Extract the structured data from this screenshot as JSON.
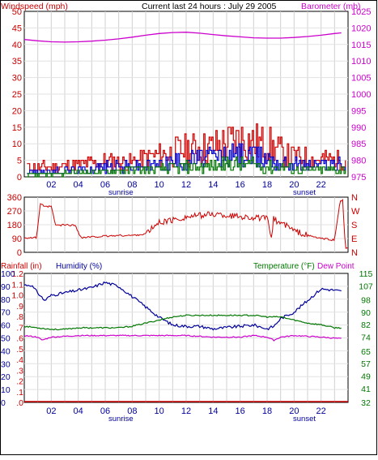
{
  "header": {
    "title": "Current last 24 hours : July 29 2005",
    "left_label": "Windspeed (mph)",
    "right_label": "Barometer (mb)"
  },
  "panel2": {
    "right_labels": [
      "N",
      "W",
      "S",
      "E",
      "N"
    ]
  },
  "panel3": {
    "rainfall_label": "Rainfall (in)",
    "humidity_label": "Humidity (%)",
    "temperature_label": "Temperature (°F)",
    "dewpoint_label": "Dew Point"
  },
  "x_ticks": [
    "02",
    "04",
    "06",
    "08",
    "10",
    "12",
    "14",
    "16",
    "18",
    "20",
    "22"
  ],
  "sunrise_label": "sunrise",
  "sunset_label": "sunset",
  "colors": {
    "windspeed": "#cc0000",
    "wind_blue": "#0000cc",
    "wind_green": "#007700",
    "barometer": "#cc00cc",
    "direction": "#cc0000",
    "humidity": "#000099",
    "temperature": "#007700",
    "dewpoint": "#cc00cc",
    "rainfall": "#cc0000",
    "grid": "#d0d0d0"
  },
  "chart_data": [
    {
      "type": "line",
      "x_unit": "hour",
      "xlim": [
        0,
        24
      ],
      "y_left": {
        "ticks": [
          "0",
          "5",
          "10",
          "15",
          "20",
          "25",
          "30",
          "35",
          "40",
          "45",
          "50"
        ],
        "ylim": [
          0,
          50
        ]
      },
      "y_right": {
        "ticks": [
          "975",
          "980",
          "985",
          "990",
          "995",
          "1000",
          "1005",
          "1010",
          "1015",
          "1020",
          "1025"
        ],
        "ylim": [
          975,
          1025
        ]
      },
      "series": [
        {
          "key": "barometer",
          "axis": "right",
          "x": [
            0,
            1,
            2,
            3,
            4,
            5,
            6,
            7,
            8,
            9,
            10,
            11,
            12,
            13,
            14,
            15,
            16,
            17,
            18,
            19,
            20,
            21,
            22,
            23,
            23.5
          ],
          "y": [
            1016.5,
            1016.1,
            1015.8,
            1015.7,
            1015.8,
            1016.0,
            1016.3,
            1016.7,
            1017.2,
            1017.8,
            1018.3,
            1018.6,
            1018.7,
            1018.4,
            1018.0,
            1017.6,
            1017.3,
            1017.0,
            1016.9,
            1016.9,
            1017.1,
            1017.4,
            1017.8,
            1018.3,
            1018.5
          ]
        },
        {
          "key": "wind_gust",
          "axis": "left",
          "envelope_x": [
            0,
            2,
            4,
            6,
            8,
            10,
            12,
            14,
            15,
            16,
            17,
            18,
            19,
            20,
            22,
            23.5
          ],
          "envelope_y": [
            4,
            4,
            5,
            6,
            6,
            9,
            11,
            12,
            14,
            15,
            14,
            13,
            10,
            8,
            7,
            7
          ]
        },
        {
          "key": "wind_avg",
          "axis": "left",
          "envelope_x": [
            0,
            2,
            4,
            6,
            8,
            10,
            12,
            14,
            15,
            16,
            17,
            18,
            19,
            20,
            22,
            23.5
          ],
          "envelope_y": [
            2,
            2,
            3,
            4,
            4,
            5,
            7,
            8,
            8,
            9,
            8,
            8,
            6,
            5,
            5,
            5
          ]
        },
        {
          "key": "wind_low",
          "axis": "left",
          "envelope_x": [
            0,
            2,
            4,
            6,
            8,
            10,
            12,
            14,
            15,
            16,
            17,
            18,
            19,
            20,
            22,
            23.5
          ],
          "envelope_y": [
            1,
            1,
            2,
            2,
            3,
            3,
            4,
            4,
            5,
            5,
            5,
            4,
            4,
            3,
            3,
            3
          ]
        }
      ]
    },
    {
      "type": "line",
      "x_unit": "hour",
      "xlim": [
        0,
        24
      ],
      "y_left": {
        "ticks": [
          "0",
          "90",
          "180",
          "270",
          "360"
        ],
        "ylim": [
          0,
          360
        ]
      },
      "series": [
        {
          "key": "direction",
          "x": [
            0,
            0.9,
            1.2,
            1.5,
            2.0,
            2.3,
            2.6,
            3.0,
            3.8,
            4.2,
            5,
            6,
            7,
            8,
            9,
            10,
            11,
            12,
            13,
            14,
            15,
            16,
            17,
            18,
            18.3,
            18.5,
            18.7,
            19.0,
            19.5,
            20,
            21,
            22,
            23,
            23.4,
            23.6,
            23.8,
            24
          ],
          "y": [
            95,
            95,
            320,
            295,
            300,
            180,
            175,
            180,
            175,
            95,
            100,
            105,
            110,
            110,
            120,
            195,
            210,
            230,
            240,
            250,
            240,
            235,
            225,
            220,
            100,
            230,
            200,
            195,
            170,
            140,
            110,
            90,
            80,
            330,
            340,
            30,
            20
          ]
        }
      ]
    },
    {
      "type": "line",
      "x_unit": "hour",
      "xlim": [
        0,
        24
      ],
      "y_rain": {
        "ticks": [
          ".0",
          ".1",
          ".2",
          ".3",
          ".4",
          ".5",
          ".6",
          ".7",
          ".8",
          ".9",
          "1.0",
          "1.1",
          "1.2"
        ],
        "ylim": [
          0,
          1.2
        ]
      },
      "y_humidity": {
        "ticks": [
          "0",
          "10",
          "20",
          "30",
          "40",
          "50",
          "60",
          "70",
          "80",
          "90",
          "100"
        ],
        "ylim": [
          0,
          100
        ]
      },
      "y_temperature": {
        "ticks": [
          "32",
          "41",
          "49",
          "57",
          "65",
          "74",
          "82",
          "90",
          "98",
          "107",
          "115"
        ],
        "ylim": [
          32,
          115
        ]
      },
      "series": [
        {
          "key": "humidity",
          "axis": "humidity",
          "x": [
            0,
            0.5,
            1.0,
            1.5,
            2.0,
            3,
            4,
            5,
            6,
            7,
            8,
            9,
            10,
            11,
            12,
            13,
            14,
            15,
            16,
            17,
            18,
            18.5,
            19,
            20,
            21,
            22,
            23,
            23.5
          ],
          "y": [
            91,
            91,
            85,
            79,
            83,
            85,
            87,
            89,
            93,
            90,
            82,
            74,
            66,
            60,
            59,
            59,
            57,
            58,
            59,
            60,
            57,
            59,
            65,
            70,
            79,
            88,
            87,
            86
          ]
        },
        {
          "key": "temperature",
          "axis": "temperature",
          "x": [
            0,
            1,
            2,
            3,
            4,
            5,
            6,
            7,
            8,
            9,
            10,
            11,
            12,
            13,
            14,
            15,
            16,
            17,
            18,
            19,
            20,
            21,
            22,
            23,
            23.5
          ],
          "y": [
            81,
            80,
            79,
            79,
            80,
            80,
            80,
            80,
            81,
            83,
            85,
            87,
            88,
            88,
            88,
            88,
            88,
            88,
            87,
            87,
            85,
            83,
            82,
            80,
            80
          ]
        },
        {
          "key": "dewpoint",
          "axis": "temperature",
          "x": [
            0,
            1,
            1.3,
            2,
            4,
            6,
            8,
            10,
            12,
            14,
            16,
            17,
            18,
            18.5,
            19,
            20,
            22,
            23.5
          ],
          "y": [
            75,
            74,
            72,
            74,
            75,
            75,
            75,
            75,
            75,
            74,
            74,
            75,
            74,
            72,
            74,
            75,
            74,
            73
          ]
        },
        {
          "key": "rainfall",
          "axis": "rain",
          "x": [
            0,
            24
          ],
          "y": [
            0,
            0
          ]
        }
      ]
    }
  ]
}
